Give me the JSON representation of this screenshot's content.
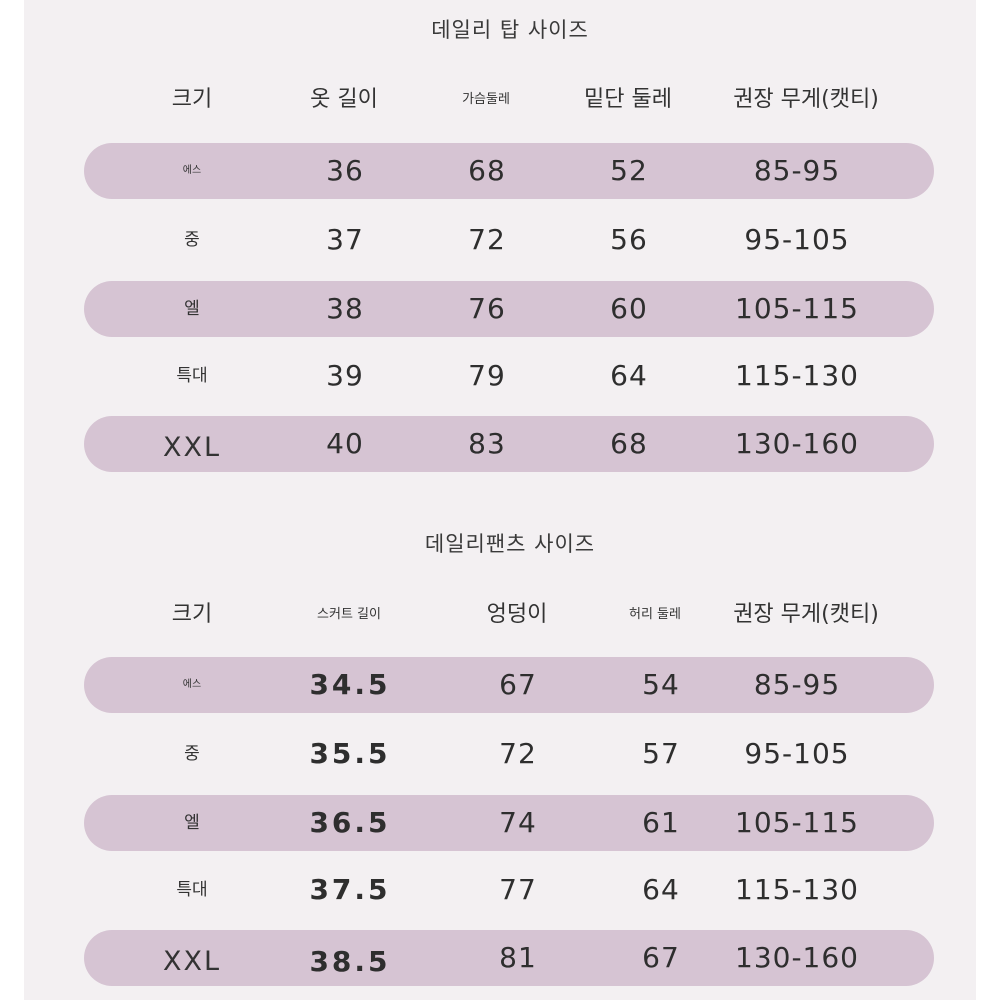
{
  "tables": [
    {
      "title": "데일리 탑 사이즈",
      "headers": [
        "크기",
        "옷 길이",
        "가슴둘레",
        "밑단 둘레",
        "권장 무게(캣티)"
      ],
      "rows": [
        [
          "에스",
          "36",
          "68",
          "52",
          "85-95"
        ],
        [
          "중",
          "37",
          "72",
          "56",
          "95-105"
        ],
        [
          "엘",
          "38",
          "76",
          "60",
          "105-115"
        ],
        [
          "특대",
          "39",
          "79",
          "64",
          "115-130"
        ],
        [
          "XXL",
          "40",
          "83",
          "68",
          "130-160"
        ]
      ]
    },
    {
      "title": "데일리팬츠 사이즈",
      "headers": [
        "크기",
        "스커트 길이",
        "엉덩이",
        "허리 둘레",
        "권장 무게(캣티)"
      ],
      "rows": [
        [
          "에스",
          "34.5",
          "67",
          "54",
          "85-95"
        ],
        [
          "중",
          "35.5",
          "72",
          "57",
          "95-105"
        ],
        [
          "엘",
          "36.5",
          "74",
          "61",
          "105-115"
        ],
        [
          "특대",
          "37.5",
          "77",
          "64",
          "115-130"
        ],
        [
          "XXL",
          "38.5",
          "81",
          "67",
          "130-160"
        ]
      ]
    }
  ],
  "colors": {
    "panel_background": "#f3f0f2",
    "row_highlight": "#d6c4d3",
    "text": "#2e2e2e"
  }
}
